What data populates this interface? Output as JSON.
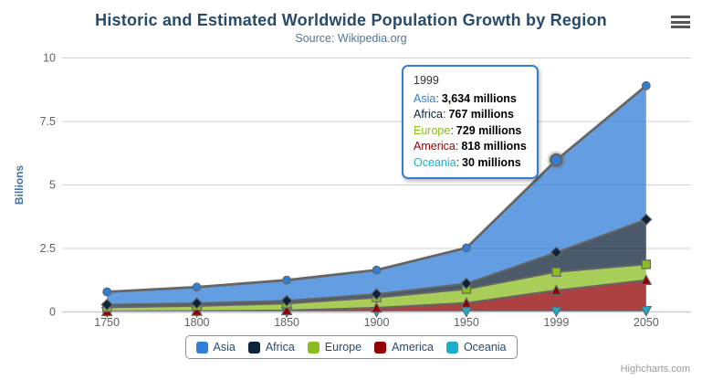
{
  "header": {
    "title": "Historic and Estimated Worldwide Population Growth by Region",
    "subtitle": "Source: Wikipedia.org"
  },
  "chart_data": {
    "type": "area",
    "stacking": "normal",
    "title": "Historic and Estimated Worldwide Population Growth by Region",
    "subtitle": "Source: Wikipedia.org",
    "categories": [
      "1750",
      "1800",
      "1850",
      "1900",
      "1950",
      "1999",
      "2050"
    ],
    "values_unit": "millions",
    "series": [
      {
        "name": "Asia",
        "color": "#2f7ed8",
        "marker": "circle",
        "values": [
          502,
          635,
          809,
          947,
          1402,
          3634,
          5268
        ]
      },
      {
        "name": "Africa",
        "color": "#0d233a",
        "marker": "diamond",
        "values": [
          106,
          107,
          111,
          133,
          221,
          767,
          1766
        ]
      },
      {
        "name": "Europe",
        "color": "#8bbc21",
        "marker": "square",
        "values": [
          163,
          203,
          276,
          408,
          547,
          729,
          628
        ]
      },
      {
        "name": "America",
        "color": "#910000",
        "marker": "triangle",
        "values": [
          18,
          31,
          54,
          156,
          339,
          818,
          1201
        ]
      },
      {
        "name": "Oceania",
        "color": "#1aadce",
        "marker": "triangle-down",
        "values": [
          2,
          2,
          2,
          6,
          13,
          30,
          46
        ]
      }
    ],
    "ylabel": "Billions",
    "ylim": [
      0,
      10
    ],
    "yticks": [
      "0",
      "2.5",
      "5",
      "7.5",
      "10"
    ],
    "grid": true,
    "legend_position": "bottom",
    "line_color": "#666666",
    "fill_opacity": 0.75,
    "grid_color": "#d0d0d0",
    "xaxis_line_color": "#c0d0e0",
    "label_color": "#606060",
    "yaxis_title_color": "#4572a7",
    "title_color": "#274b6d",
    "subtitle_color": "#4d759e",
    "legend_text_color": "#274b6d"
  },
  "hover": {
    "series": "Asia",
    "category": "1999",
    "series_index": 0,
    "point_index": 5
  },
  "tooltip": {
    "header": "1999",
    "border_color": "#2f7ed8",
    "rows": [
      {
        "name": "Asia",
        "color": "#2f7ed8",
        "value": "3,634 millions"
      },
      {
        "name": "Africa",
        "color": "#0d233a",
        "value": "767 millions"
      },
      {
        "name": "Europe",
        "color": "#8bbc21",
        "value": "729 millions"
      },
      {
        "name": "America",
        "color": "#910000",
        "value": "818 millions"
      },
      {
        "name": "Oceania",
        "color": "#1aadce",
        "value": "30 millions"
      }
    ]
  },
  "credits": {
    "text": "Highcharts.com"
  }
}
